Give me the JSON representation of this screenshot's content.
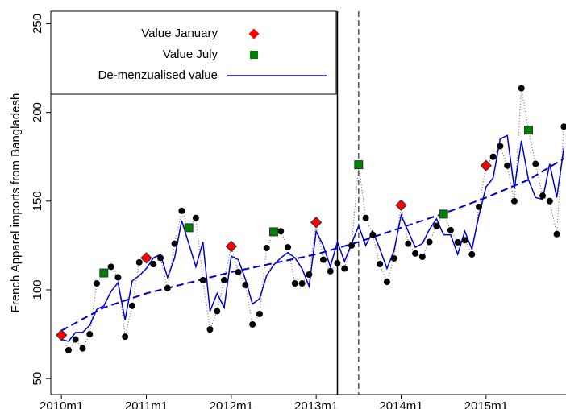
{
  "chart_data": {
    "type": "line",
    "y_label": "French Apparel imports from Bangladesh",
    "x": [
      600,
      601,
      602,
      603,
      604,
      605,
      606,
      607,
      608,
      609,
      610,
      611,
      612,
      613,
      614,
      615,
      616,
      617,
      618,
      619,
      620,
      621,
      622,
      623,
      624,
      625,
      626,
      627,
      628,
      629,
      630,
      631,
      632,
      633,
      634,
      635,
      636,
      637,
      638,
      639,
      640,
      641,
      642,
      643,
      644,
      645,
      646,
      647,
      648,
      649,
      650,
      651,
      652,
      653,
      654,
      655,
      656,
      657,
      658,
      659,
      660,
      661,
      662,
      663,
      664,
      665,
      666,
      667,
      668,
      669,
      670,
      671
    ],
    "values": [
      74.5,
      66,
      72,
      67,
      75,
      103.6,
      109.5,
      113,
      107,
      73.6,
      91,
      115.5,
      118,
      114.5,
      118,
      101,
      126,
      144.5,
      135,
      140.5,
      105.5,
      77.7,
      88,
      105.5,
      124.5,
      110,
      102.7,
      80.5,
      86.4,
      123.6,
      132.7,
      133,
      124,
      103.6,
      103.6,
      108.6,
      138,
      117,
      110.5,
      115,
      112,
      125,
      170.5,
      140.5,
      131,
      114.5,
      104.5,
      117.7,
      147.7,
      126,
      120.5,
      118.6,
      127,
      136,
      142.7,
      133.6,
      126.8,
      128,
      120,
      146.8,
      170,
      175,
      181,
      170,
      150,
      213.6,
      190,
      171,
      153,
      150,
      131.4,
      192
    ],
    "color": "#000000",
    "series": [
      {
        "name": "Value January",
        "color": "#ff0000",
        "marker": "diamond",
        "x": [
          600,
          612,
          624,
          636,
          648,
          660
        ],
        "values": [
          74.5,
          118,
          124.5,
          138,
          147.7,
          170
        ]
      },
      {
        "name": "Value July",
        "color": "#008000",
        "marker": "square",
        "x": [
          606,
          618,
          630,
          642,
          654,
          666
        ],
        "values": [
          109.5,
          135,
          132.7,
          170.5,
          142.7,
          190
        ]
      },
      {
        "name": "De-menzualised value",
        "color": "#0000cc",
        "marker": "line",
        "values": [
          72,
          71,
          76,
          76,
          80,
          89,
          91,
          99,
          104,
          83,
          105,
          108,
          112,
          118,
          120,
          107,
          118,
          139,
          126,
          113,
          127,
          88,
          98,
          90,
          119,
          117,
          106,
          92,
          95,
          108,
          114,
          118,
          121,
          118,
          112,
          102,
          133,
          125,
          113,
          127,
          116,
          126,
          136,
          125,
          133,
          123,
          112,
          122,
          142,
          133,
          124,
          126,
          134,
          140,
          131,
          131,
          120,
          133,
          123,
          142,
          158,
          163,
          185,
          187,
          157,
          184,
          162,
          152,
          151,
          171,
          152,
          180
        ]
      }
    ],
    "trend": {
      "color": "#0000cc",
      "style": "dash",
      "x": [
        600,
        606,
        612,
        618,
        624,
        630,
        636,
        642,
        648,
        654,
        660,
        666,
        671
      ],
      "values": [
        77,
        90,
        98,
        104,
        110,
        115,
        120,
        127,
        135,
        143,
        152,
        162,
        174
      ]
    },
    "vlines": [
      {
        "x": 639,
        "style": "solid"
      },
      {
        "x": 642,
        "style": "dash"
      }
    ],
    "xlim": [
      598.5,
      671.3
    ],
    "ylim": [
      41,
      257
    ],
    "xticks": [
      {
        "value": 600,
        "label": "2010m1"
      },
      {
        "value": 612,
        "label": "2011m1"
      },
      {
        "value": 624,
        "label": "2012m1"
      },
      {
        "value": 636,
        "label": "2013m1"
      },
      {
        "value": 648,
        "label": "2014m1"
      },
      {
        "value": 660,
        "label": "2015m1"
      }
    ],
    "yticks": [
      50,
      100,
      150,
      200,
      250
    ],
    "legend": "top-left"
  }
}
